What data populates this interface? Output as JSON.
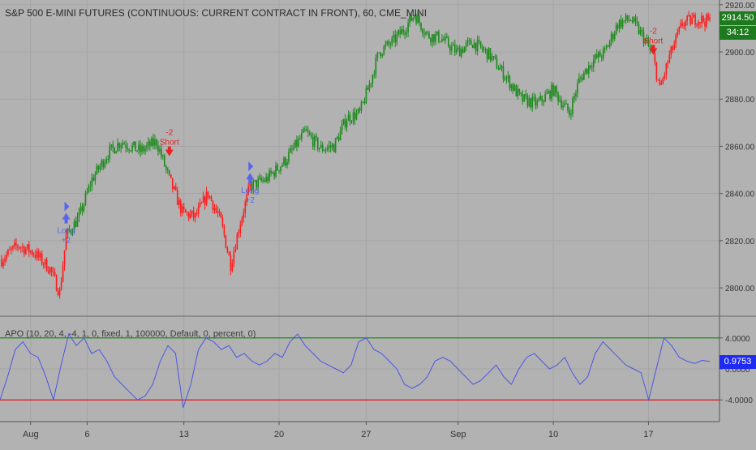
{
  "price_title": "S&P 500 E-MINI FUTURES (CONTINUOUS: CURRENT CONTRACT IN FRONT), 60, CME_MINI",
  "price_badge": "2914.50",
  "timer_badge": "34:12",
  "apo_title": "APO (10, 20, 4, -4, 1, 0, fixed, 1, 100000, Default, 0, percent, 0)",
  "apo_badge": "0.9753",
  "colors": {
    "background": "#b2b2b2",
    "grid": "#a5a5a5",
    "up": "#1b8a1b",
    "down": "#ff1a1a",
    "apo_line": "#4a55e6",
    "upper_band": "#168a16",
    "lower_band": "#e81414",
    "badge_price": "#1e7a1e",
    "badge_apo": "#1f2bf0",
    "signal_long": "#5a66e8",
    "signal_short": "#e82020"
  },
  "chart_data": [
    {
      "type": "candlestick",
      "title": "S&P 500 E-MINI FUTURES (CONTINUOUS: CURRENT CONTRACT IN FRONT), 60, CME_MINI",
      "ylim": [
        2788,
        2922
      ],
      "y_ticks": [
        "2800.00",
        "2820.00",
        "2840.00",
        "2860.00",
        "2880.00",
        "2900.00",
        "2920.00"
      ],
      "y_tick_values": [
        2800,
        2820,
        2840,
        2860,
        2880,
        2900,
        2920
      ],
      "x_ticks": [
        "Aug",
        "6",
        "13",
        "20",
        "27",
        "Sep",
        "10",
        "17"
      ],
      "x_tick_index": [
        18,
        53,
        113,
        172,
        226,
        283,
        342,
        401
      ],
      "last_price": 2914.5,
      "bar_count": 440,
      "close_path": [
        [
          0,
          2812,
          "down"
        ],
        [
          10,
          2818,
          "down"
        ],
        [
          20,
          2815,
          "down"
        ],
        [
          30,
          2808,
          "down"
        ],
        [
          36,
          2798,
          "down"
        ],
        [
          40,
          2822,
          "up"
        ],
        [
          48,
          2830,
          "up"
        ],
        [
          56,
          2846,
          "up"
        ],
        [
          66,
          2857,
          "up"
        ],
        [
          74,
          2862,
          "up"
        ],
        [
          86,
          2858,
          "up"
        ],
        [
          96,
          2862,
          "up"
        ],
        [
          104,
          2846,
          "down"
        ],
        [
          112,
          2832,
          "down"
        ],
        [
          120,
          2830,
          "down"
        ],
        [
          128,
          2840,
          "down"
        ],
        [
          136,
          2828,
          "down"
        ],
        [
          142,
          2810,
          "down"
        ],
        [
          148,
          2828,
          "down"
        ],
        [
          154,
          2843,
          "up"
        ],
        [
          164,
          2846,
          "up"
        ],
        [
          176,
          2854,
          "up"
        ],
        [
          188,
          2866,
          "up"
        ],
        [
          198,
          2859,
          "up"
        ],
        [
          206,
          2860,
          "up"
        ],
        [
          214,
          2872,
          "up"
        ],
        [
          222,
          2874,
          "up"
        ],
        [
          228,
          2886,
          "up"
        ],
        [
          234,
          2900,
          "up"
        ],
        [
          242,
          2904,
          "up"
        ],
        [
          250,
          2910,
          "up"
        ],
        [
          256,
          2916,
          "up"
        ],
        [
          264,
          2907,
          "up"
        ],
        [
          272,
          2906,
          "up"
        ],
        [
          282,
          2900,
          "up"
        ],
        [
          292,
          2904,
          "up"
        ],
        [
          302,
          2899,
          "up"
        ],
        [
          312,
          2890,
          "up"
        ],
        [
          322,
          2880,
          "up"
        ],
        [
          332,
          2878,
          "up"
        ],
        [
          342,
          2884,
          "up"
        ],
        [
          352,
          2874,
          "up"
        ],
        [
          358,
          2888,
          "up"
        ],
        [
          366,
          2896,
          "up"
        ],
        [
          374,
          2900,
          "up"
        ],
        [
          382,
          2912,
          "up"
        ],
        [
          390,
          2914,
          "up"
        ],
        [
          398,
          2906,
          "up"
        ],
        [
          404,
          2898,
          "down"
        ],
        [
          408,
          2884,
          "down"
        ],
        [
          414,
          2898,
          "down"
        ],
        [
          422,
          2912,
          "down"
        ],
        [
          430,
          2914,
          "down"
        ],
        [
          439,
          2913,
          "down"
        ]
      ],
      "signals": [
        {
          "kind": "long",
          "label": "Long",
          "qty": "+2",
          "bar": 40,
          "price": 2829
        },
        {
          "kind": "short",
          "label": "Short",
          "qty": "-2",
          "bar": 104,
          "price": 2862
        },
        {
          "kind": "long",
          "label": "Long",
          "qty": "+2",
          "bar": 154,
          "price": 2846
        },
        {
          "kind": "short",
          "label": "Short",
          "qty": "-2",
          "bar": 404,
          "price": 2905
        }
      ]
    },
    {
      "type": "line",
      "title": "APO (10, 20, 4, -4, 1, 0, fixed, 1, 100000, Default, 0, percent, 0)",
      "ylim": [
        -6.8,
        6.8
      ],
      "y_ticks": [
        "4.0000",
        "0.0000",
        "-4.0000"
      ],
      "y_tick_values": [
        4,
        0,
        -4
      ],
      "upper_band": 4,
      "lower_band": -4,
      "last_value": 0.9753,
      "values": [
        -4.0,
        -1.0,
        2.5,
        3.5,
        2.0,
        1.5,
        -1.0,
        -4.0,
        0.5,
        4.5,
        3.0,
        4.0,
        2.0,
        2.5,
        1.0,
        -1.0,
        -2.0,
        -3.0,
        -4.0,
        -3.5,
        -2.0,
        1.0,
        3.0,
        2.0,
        -5.0,
        -2.0,
        2.5,
        4.0,
        3.5,
        2.5,
        3.0,
        1.5,
        2.0,
        1.0,
        0.5,
        1.0,
        2.0,
        1.5,
        3.5,
        4.5,
        3.0,
        2.0,
        1.0,
        0.5,
        0.0,
        -0.5,
        0.5,
        3.5,
        4.0,
        2.5,
        2.0,
        1.0,
        0.0,
        -2.0,
        -2.5,
        -2.0,
        -1.0,
        1.0,
        1.5,
        1.0,
        0.0,
        -1.0,
        -2.0,
        -1.5,
        -0.5,
        0.5,
        -1.0,
        -2.0,
        0.0,
        1.5,
        2.0,
        1.0,
        0.0,
        0.5,
        1.5,
        -0.5,
        -2.0,
        -1.0,
        2.0,
        3.5,
        2.5,
        1.5,
        0.5,
        0.0,
        -0.5,
        -4.0,
        0.0,
        4.0,
        3.0,
        1.5,
        1.0,
        0.7,
        1.1,
        0.9753
      ]
    }
  ]
}
